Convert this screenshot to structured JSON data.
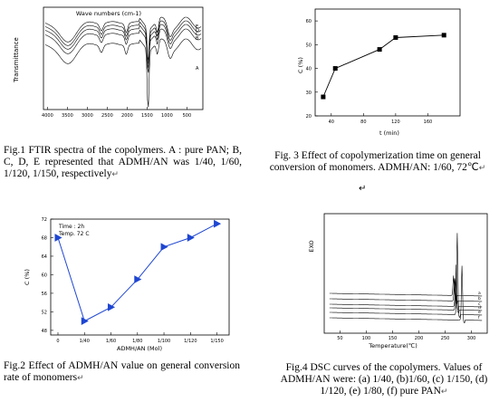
{
  "figures": {
    "fig1": {
      "caption": "Fig.1 FTIR spectra of the copolymers. A : pure PAN; B, C, D, E represented that ADMH/AN was 1/40, 1/60, 1/120, 1/150, respectively",
      "return_mark": "↵"
    },
    "fig2": {
      "caption": "Fig.2  Effect  of  ADMH/AN  value  on  general conversion rate of monomers",
      "return_mark": "↵"
    },
    "fig3": {
      "caption": "Fig. 3 Effect of copolymerization time on general conversion of monomers. ADMH/AN: 1/60, 72℃",
      "return_mark": "↵"
    },
    "fig4": {
      "caption": "Fig.4 DSC curves of the copolymers. Values of ADMH/AN were: (a) 1/40, (b)1/60, (c) 1/150, (d) 1/120, (e) 1/80, (f) pure PAN",
      "return_mark": "↵"
    }
  },
  "chart_data": [
    {
      "id": "fig1",
      "type": "line",
      "xlabel": "Wave numbers (cm-1)",
      "ylabel": "Transmittance",
      "x_ticks": [
        "4000",
        "3500",
        "3000",
        "2500",
        "2000",
        "1500",
        "1000",
        "500"
      ],
      "xlim": [
        4000,
        400
      ],
      "series_labels": [
        "E",
        "D",
        "C",
        "B",
        "A"
      ],
      "grid": false,
      "legend": "right labels"
    },
    {
      "id": "fig2",
      "type": "line",
      "title_lines": [
        "Time : 2h",
        "Temp. 72 C"
      ],
      "xlabel": "ADMH/AN (Mol)",
      "ylabel": "C (%)",
      "categories": [
        "0",
        "1/40",
        "1/60",
        "1/80",
        "1/100",
        "1/120",
        "1/150"
      ],
      "values": [
        68,
        50,
        53,
        59,
        66,
        68,
        71
      ],
      "y_ticks": [
        48,
        52,
        56,
        60,
        64,
        68,
        72
      ],
      "ylim": [
        47,
        72
      ],
      "marker": "triangle",
      "color": "#1e46d2",
      "grid": false
    },
    {
      "id": "fig3",
      "type": "line",
      "xlabel": "t (min)",
      "ylabel": "C (%)",
      "x": [
        30,
        45,
        100,
        120,
        180
      ],
      "y": [
        28,
        40,
        48,
        53,
        54
      ],
      "x_ticks": [
        40,
        80,
        120,
        160
      ],
      "y_ticks": [
        20,
        30,
        40,
        50,
        60
      ],
      "xlim": [
        20,
        200
      ],
      "ylim": [
        20,
        65
      ],
      "marker": "square",
      "grid": false
    },
    {
      "id": "fig4",
      "type": "line",
      "xlabel": "Temperature(℃)",
      "ylabel": "EXO",
      "x_ticks": [
        "50",
        "100",
        "150",
        "200",
        "250",
        "300"
      ],
      "xlim": [
        20,
        330
      ],
      "series_labels": [
        "a",
        "b",
        "c",
        "d",
        "e",
        "f"
      ],
      "grid": false,
      "legend": "right labels"
    }
  ]
}
